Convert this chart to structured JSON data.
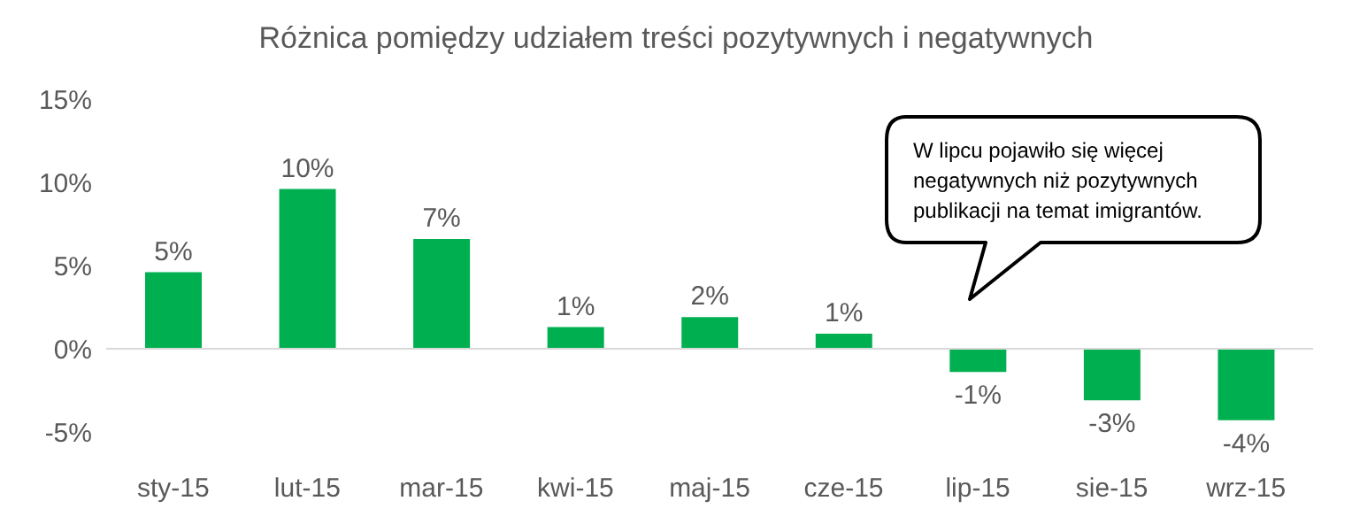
{
  "chart_data": {
    "type": "bar",
    "title": "Różnica pomiędzy udziałem treści pozytywnych i negatywnych",
    "categories": [
      "sty-15",
      "lut-15",
      "mar-15",
      "kwi-15",
      "maj-15",
      "cze-15",
      "lip-15",
      "sie-15",
      "wrz-15"
    ],
    "values": [
      4.6,
      9.6,
      6.6,
      1.3,
      1.9,
      0.9,
      -1.4,
      -3.1,
      -4.3
    ],
    "value_labels": [
      "5%",
      "10%",
      "7%",
      "1%",
      "2%",
      "1%",
      "-1%",
      "-3%",
      "-4%"
    ],
    "color": "#00b050",
    "ylim": [
      -5,
      15
    ],
    "yticks": [
      {
        "value": -5,
        "label": "-5%"
      },
      {
        "value": 0,
        "label": "0%"
      },
      {
        "value": 5,
        "label": "5%"
      },
      {
        "value": 10,
        "label": "10%"
      },
      {
        "value": 15,
        "label": "15%"
      }
    ],
    "grid": false,
    "legend": false,
    "ref_lines": [
      {
        "axis": "y",
        "value": 0,
        "color": "#d9d9d9"
      }
    ],
    "annotations": [
      "W lipcu pojawiło się więcej negatywnych niż pozytywnych publikacji na temat imigrantów."
    ]
  }
}
